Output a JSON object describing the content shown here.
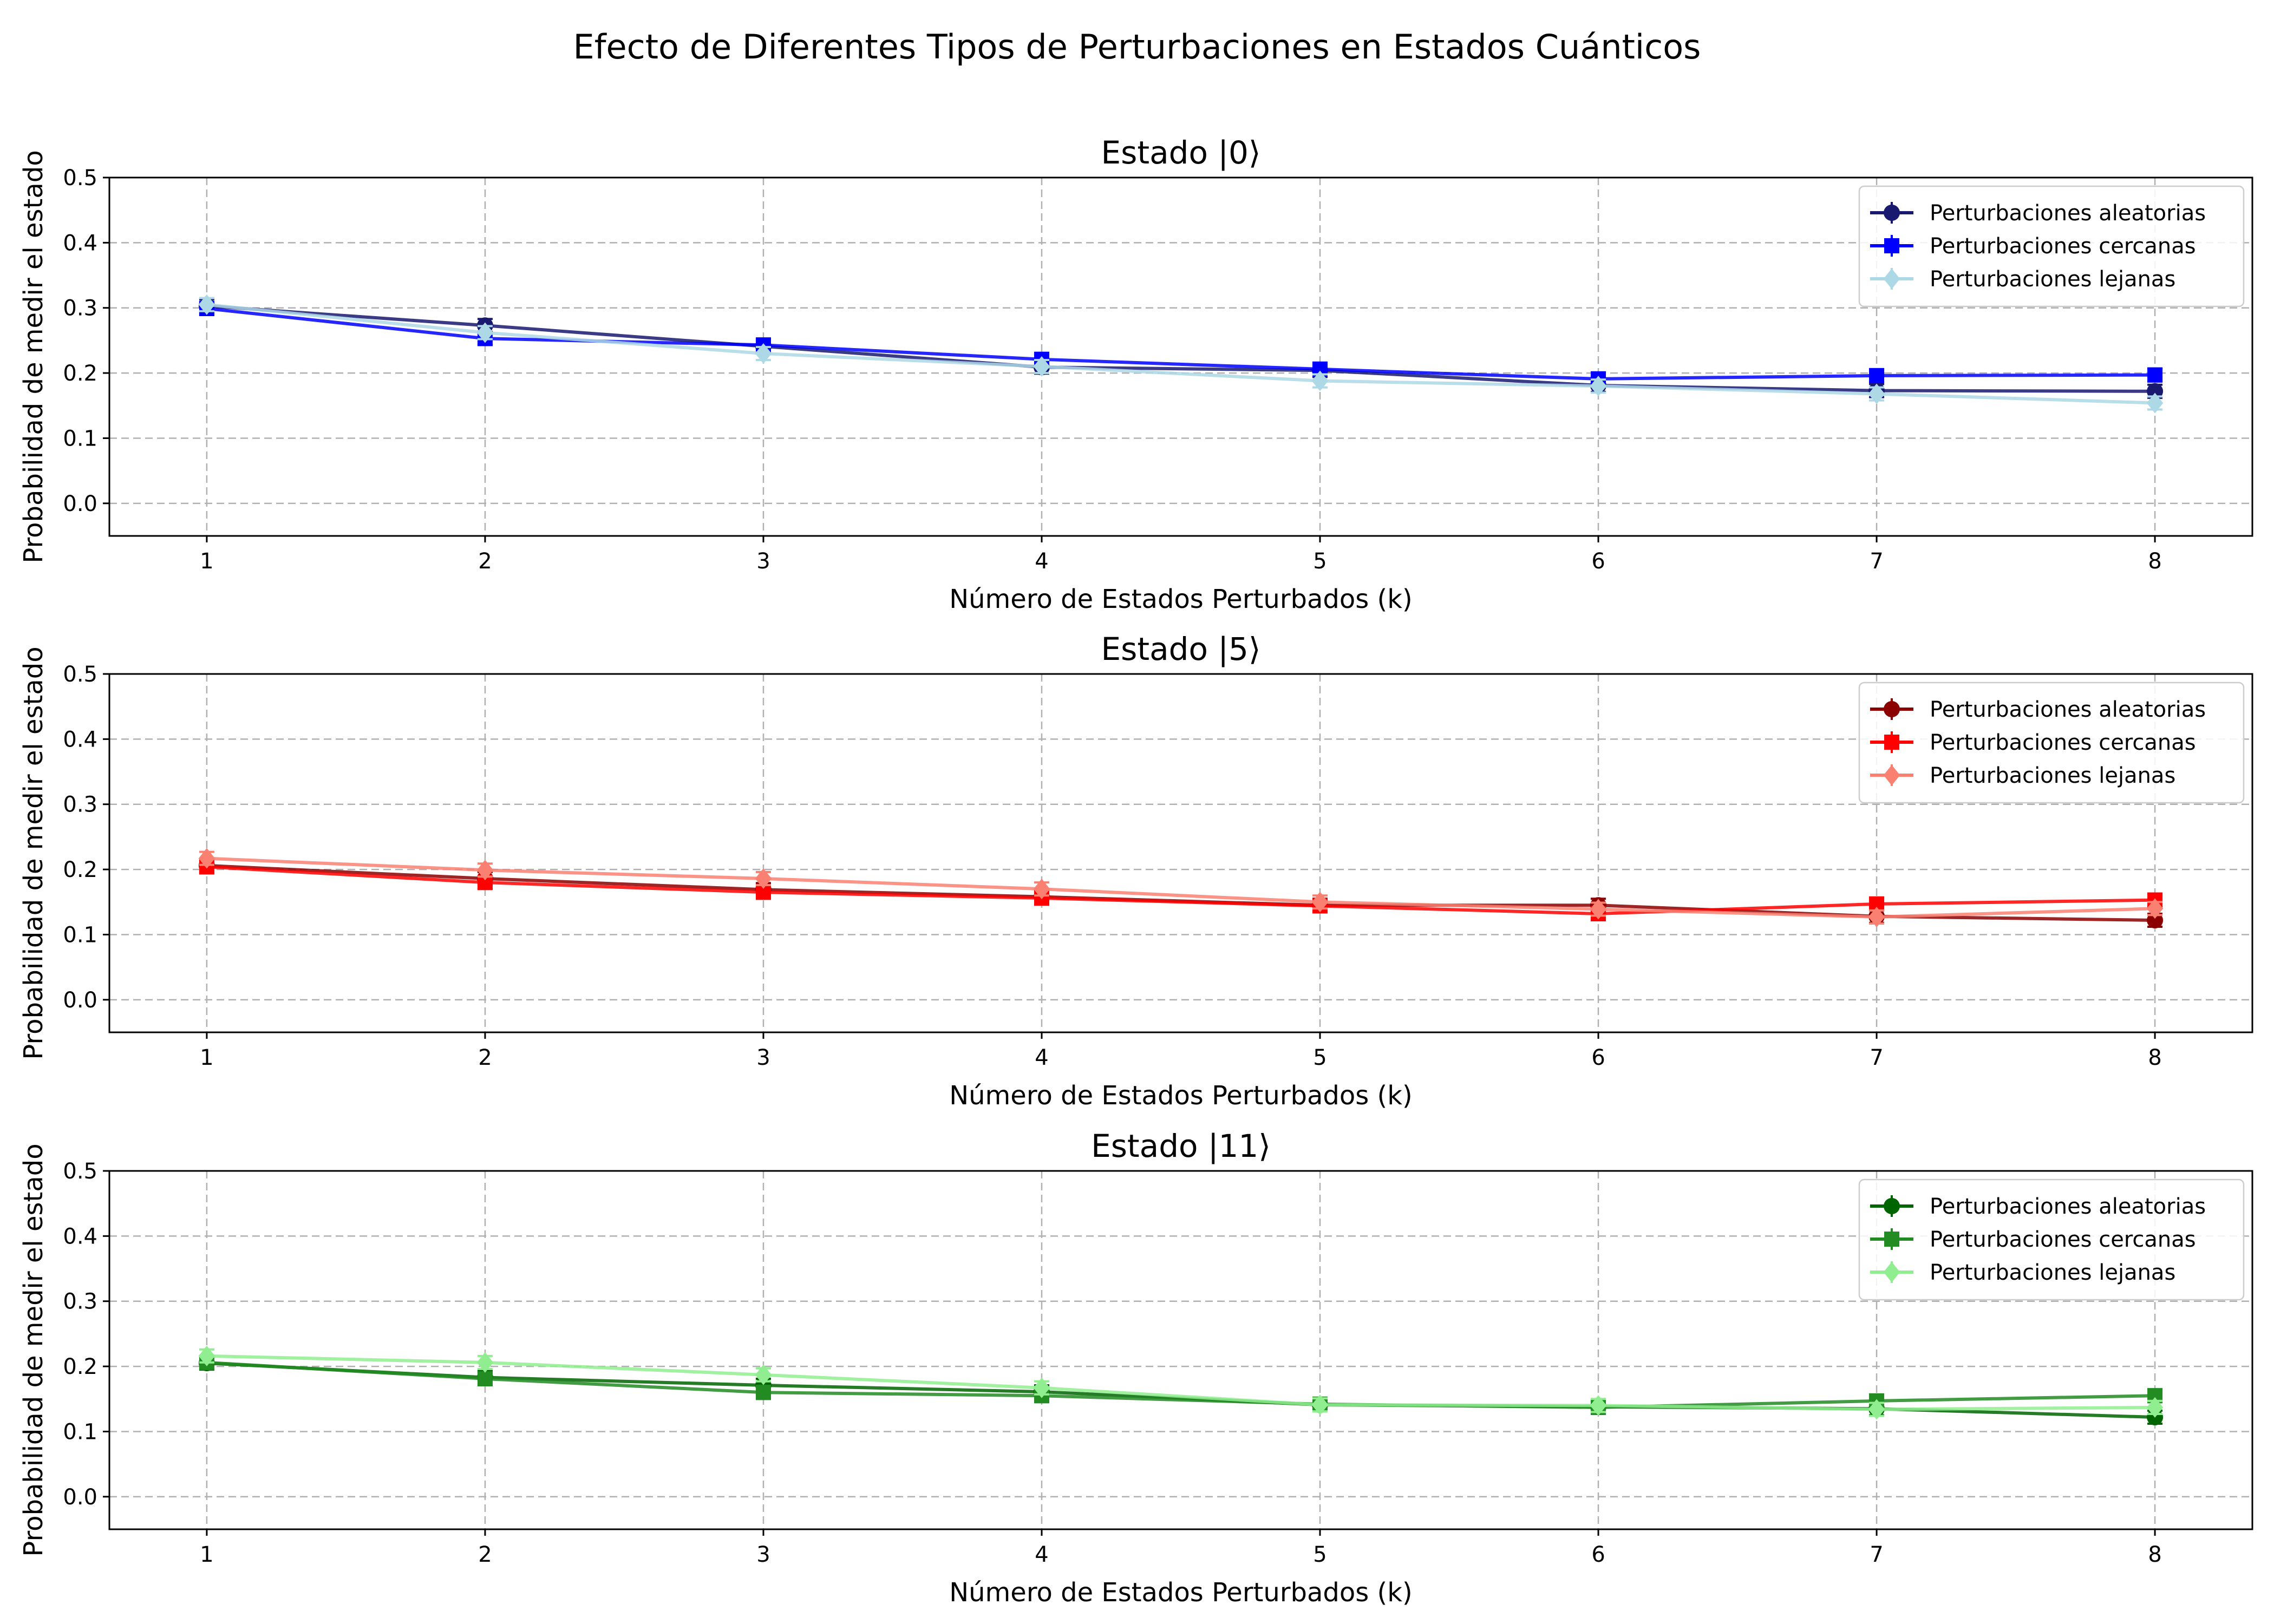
{
  "figure": {
    "title": "Efecto de Diferentes Tipos de Perturbaciones en Estados Cuánticos"
  },
  "chart_data": [
    {
      "type": "line",
      "title": "Estado |0⟩",
      "xlabel": "Número de Estados Perturbados (k)",
      "ylabel": "Probabilidad de medir el estado",
      "x": [
        1,
        2,
        3,
        4,
        5,
        6,
        7,
        8
      ],
      "xlim": [
        0.65,
        8.35
      ],
      "ylim": [
        -0.05,
        0.5
      ],
      "yticks": [
        0.0,
        0.1,
        0.2,
        0.3,
        0.4,
        0.5
      ],
      "ytick_labels": [
        "0.0",
        "0.1",
        "0.2",
        "0.3",
        "0.4",
        "0.5"
      ],
      "xtick_labels": [
        "1",
        "2",
        "3",
        "4",
        "5",
        "6",
        "7",
        "8"
      ],
      "grid": true,
      "legend_position": "top-right",
      "series": [
        {
          "name": "Perturbaciones aleatorias",
          "marker": "circle",
          "color": "#191970",
          "values": [
            0.303,
            0.273,
            0.241,
            0.209,
            0.204,
            0.181,
            0.173,
            0.172
          ],
          "errors": [
            0.01,
            0.01,
            0.01,
            0.01,
            0.01,
            0.01,
            0.01,
            0.01
          ]
        },
        {
          "name": "Perturbaciones cercanas",
          "marker": "square",
          "color": "#0000ff",
          "values": [
            0.299,
            0.253,
            0.243,
            0.221,
            0.206,
            0.191,
            0.196,
            0.197
          ],
          "errors": [
            0.01,
            0.01,
            0.01,
            0.01,
            0.01,
            0.01,
            0.01,
            0.01
          ]
        },
        {
          "name": "Perturbaciones lejanas",
          "marker": "diamond",
          "color": "#add8e6",
          "values": [
            0.305,
            0.262,
            0.23,
            0.21,
            0.188,
            0.18,
            0.168,
            0.154
          ],
          "errors": [
            0.01,
            0.01,
            0.01,
            0.01,
            0.01,
            0.01,
            0.01,
            0.01
          ]
        }
      ]
    },
    {
      "type": "line",
      "title": "Estado |5⟩",
      "xlabel": "Número de Estados Perturbados (k)",
      "ylabel": "Probabilidad de medir el estado",
      "x": [
        1,
        2,
        3,
        4,
        5,
        6,
        7,
        8
      ],
      "xlim": [
        0.65,
        8.35
      ],
      "ylim": [
        -0.05,
        0.5
      ],
      "yticks": [
        0.0,
        0.1,
        0.2,
        0.3,
        0.4,
        0.5
      ],
      "ytick_labels": [
        "0.0",
        "0.1",
        "0.2",
        "0.3",
        "0.4",
        "0.5"
      ],
      "xtick_labels": [
        "1",
        "2",
        "3",
        "4",
        "5",
        "6",
        "7",
        "8"
      ],
      "grid": true,
      "legend_position": "top-right",
      "series": [
        {
          "name": "Perturbaciones aleatorias",
          "marker": "circle",
          "color": "#8b0000",
          "values": [
            0.206,
            0.186,
            0.169,
            0.158,
            0.145,
            0.145,
            0.128,
            0.122
          ],
          "errors": [
            0.01,
            0.01,
            0.01,
            0.01,
            0.01,
            0.01,
            0.01,
            0.01
          ]
        },
        {
          "name": "Perturbaciones cercanas",
          "marker": "square",
          "color": "#ff0000",
          "values": [
            0.204,
            0.18,
            0.165,
            0.156,
            0.144,
            0.132,
            0.147,
            0.153
          ],
          "errors": [
            0.01,
            0.01,
            0.01,
            0.01,
            0.01,
            0.01,
            0.01,
            0.01
          ]
        },
        {
          "name": "Perturbaciones lejanas",
          "marker": "diamond",
          "color": "#fa8072",
          "values": [
            0.217,
            0.199,
            0.186,
            0.17,
            0.15,
            0.139,
            0.127,
            0.14
          ],
          "errors": [
            0.01,
            0.01,
            0.01,
            0.01,
            0.01,
            0.01,
            0.01,
            0.01
          ]
        }
      ]
    },
    {
      "type": "line",
      "title": "Estado |11⟩",
      "xlabel": "Número de Estados Perturbados (k)",
      "ylabel": "Probabilidad de medir el estado",
      "x": [
        1,
        2,
        3,
        4,
        5,
        6,
        7,
        8
      ],
      "xlim": [
        0.65,
        8.35
      ],
      "ylim": [
        -0.05,
        0.5
      ],
      "yticks": [
        0.0,
        0.1,
        0.2,
        0.3,
        0.4,
        0.5
      ],
      "ytick_labels": [
        "0.0",
        "0.1",
        "0.2",
        "0.3",
        "0.4",
        "0.5"
      ],
      "xtick_labels": [
        "1",
        "2",
        "3",
        "4",
        "5",
        "6",
        "7",
        "8"
      ],
      "grid": true,
      "legend_position": "top-right",
      "series": [
        {
          "name": "Perturbaciones aleatorias",
          "marker": "circle",
          "color": "#006400",
          "values": [
            0.205,
            0.183,
            0.171,
            0.161,
            0.141,
            0.138,
            0.135,
            0.122
          ],
          "errors": [
            0.01,
            0.01,
            0.01,
            0.01,
            0.01,
            0.01,
            0.01,
            0.01
          ]
        },
        {
          "name": "Perturbaciones cercanas",
          "marker": "square",
          "color": "#228b22",
          "values": [
            0.206,
            0.181,
            0.16,
            0.155,
            0.142,
            0.137,
            0.147,
            0.155
          ],
          "errors": [
            0.01,
            0.01,
            0.01,
            0.01,
            0.01,
            0.01,
            0.01,
            0.01
          ]
        },
        {
          "name": "Perturbaciones lejanas",
          "marker": "diamond",
          "color": "#90ee90",
          "values": [
            0.216,
            0.206,
            0.187,
            0.167,
            0.141,
            0.14,
            0.134,
            0.137
          ],
          "errors": [
            0.01,
            0.01,
            0.01,
            0.01,
            0.01,
            0.01,
            0.01,
            0.01
          ]
        }
      ]
    }
  ]
}
